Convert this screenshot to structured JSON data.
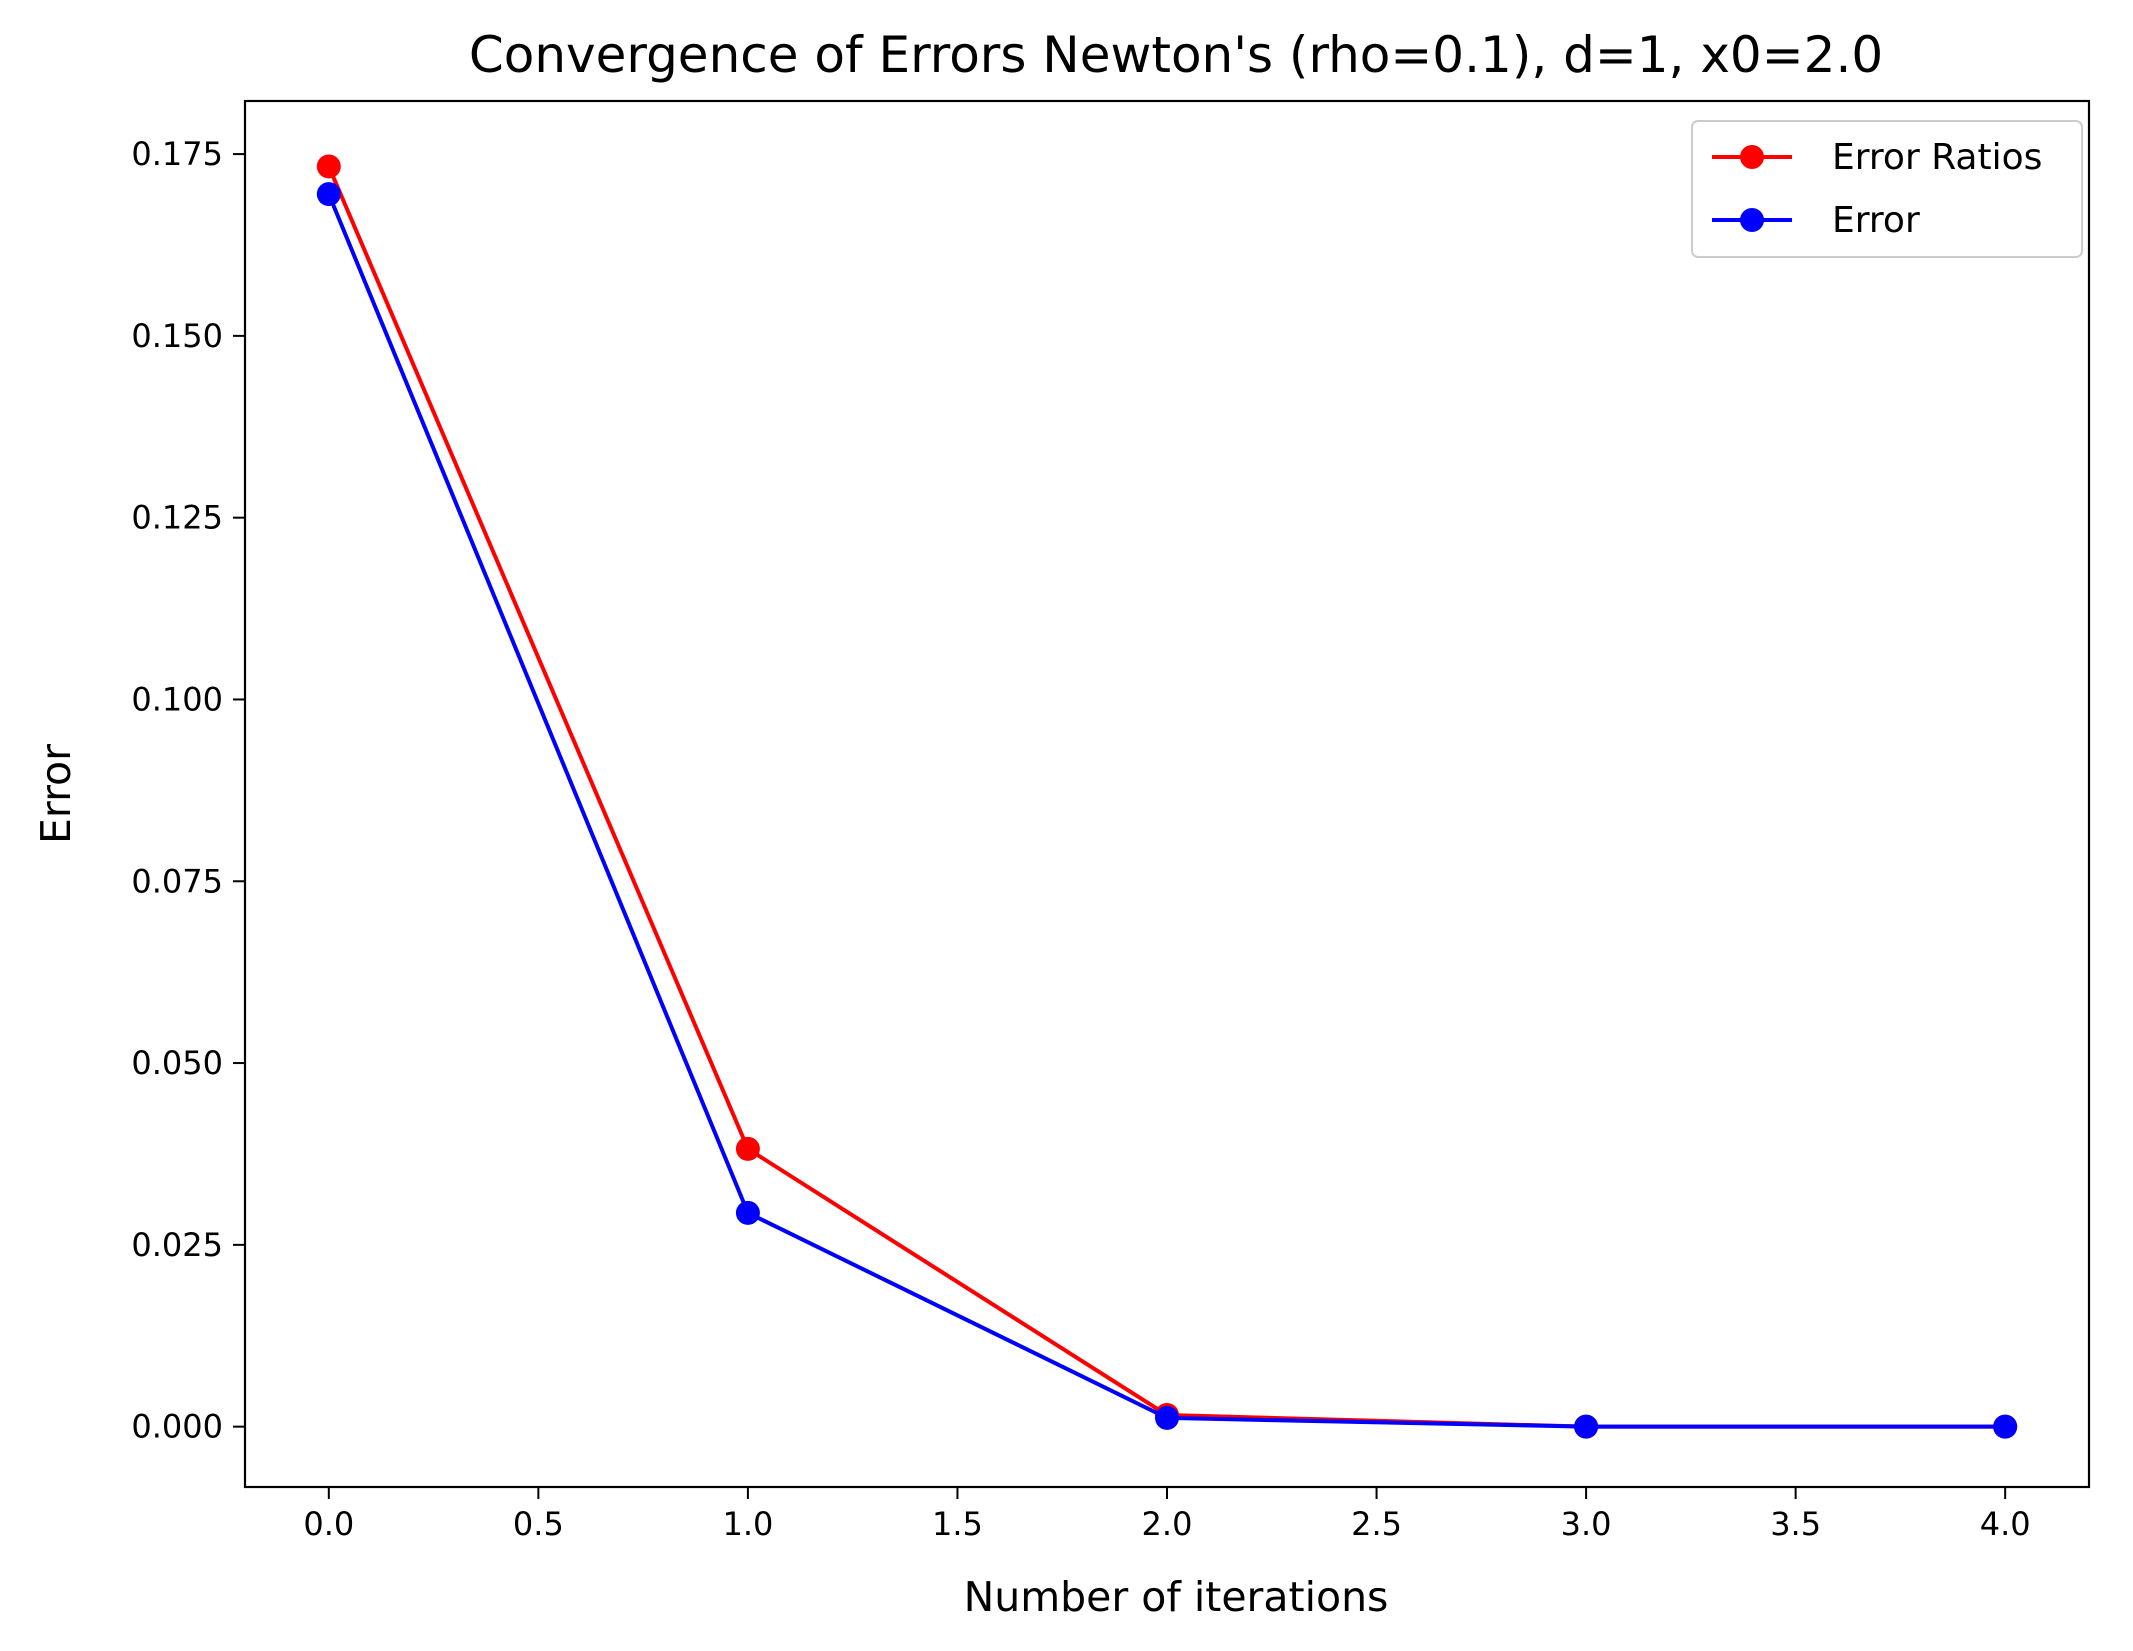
{
  "chart_data": {
    "type": "line",
    "title": "Convergence of Errors Newton's (rho=0.1), d=1, x0=2.0",
    "xlabel": "Number of iterations",
    "ylabel": "Error",
    "xlim": [
      -0.2,
      4.2
    ],
    "ylim": [
      -0.0083,
      0.1823
    ],
    "x_ticks": [
      0.0,
      0.5,
      1.0,
      1.5,
      2.0,
      2.5,
      3.0,
      3.5,
      4.0
    ],
    "x_tick_labels": [
      "0.0",
      "0.5",
      "1.0",
      "1.5",
      "2.0",
      "2.5",
      "3.0",
      "3.5",
      "4.0"
    ],
    "y_ticks": [
      0.0,
      0.025,
      0.05,
      0.075,
      0.1,
      0.125,
      0.15,
      0.175
    ],
    "y_tick_labels": [
      "0.000",
      "0.025",
      "0.050",
      "0.075",
      "0.100",
      "0.125",
      "0.150",
      "0.175"
    ],
    "x": [
      0,
      1,
      2,
      3,
      4
    ],
    "series": [
      {
        "name": "Error Ratios",
        "color": "#ff0000",
        "marker": "circle",
        "values": [
          0.1733,
          0.0382,
          0.0016,
          0.0,
          0.0
        ]
      },
      {
        "name": "Error",
        "color": "#0000ff",
        "marker": "circle",
        "values": [
          0.1695,
          0.0294,
          0.0012,
          0.0,
          0.0
        ]
      }
    ],
    "grid": false,
    "legend_position": "top-right"
  }
}
